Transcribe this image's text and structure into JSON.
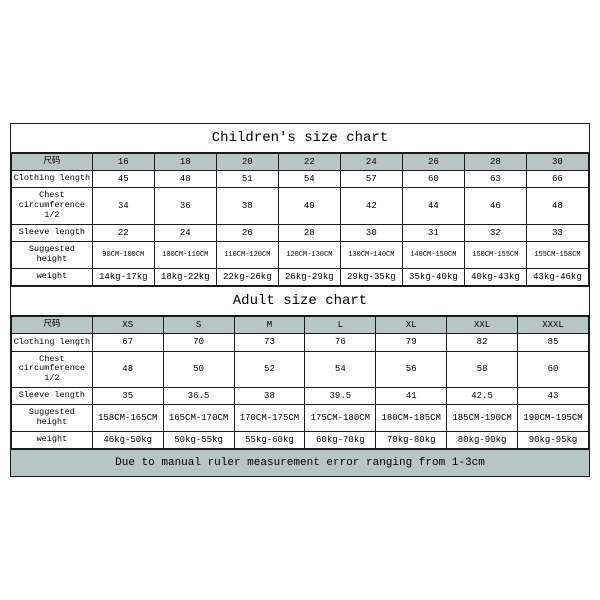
{
  "children": {
    "title": "Children's size chart",
    "header_label": "尺码",
    "sizes": [
      "16",
      "18",
      "20",
      "22",
      "24",
      "26",
      "28",
      "30"
    ],
    "rows": [
      {
        "label": "Clothing length",
        "cells": [
          "45",
          "48",
          "51",
          "54",
          "57",
          "60",
          "63",
          "66"
        ],
        "tiny": false
      },
      {
        "label": "Chest circumference 1/2",
        "cells": [
          "34",
          "36",
          "38",
          "40",
          "42",
          "44",
          "46",
          "48"
        ],
        "tiny": false
      },
      {
        "label": "Sleeve length",
        "cells": [
          "22",
          "24",
          "26",
          "28",
          "30",
          "31",
          "32",
          "33"
        ],
        "tiny": false
      },
      {
        "label": "Suggested height",
        "cells": [
          "90CM-100CM",
          "100CM-110CM",
          "110CM-120CM",
          "120CM-130CM",
          "130CM-140CM",
          "140CM-150CM",
          "150CM-155CM",
          "155CM-158CM"
        ],
        "tiny": true
      },
      {
        "label": "weight",
        "cells": [
          "14kg-17kg",
          "18kg-22kg",
          "22kg-26kg",
          "26kg-29kg",
          "29kg-35kg",
          "35kg-40kg",
          "40kg-43kg",
          "43kg-46kg"
        ],
        "tiny": false
      }
    ]
  },
  "adult": {
    "title": "Adult size chart",
    "header_label": "尺码",
    "sizes": [
      "XS",
      "S",
      "M",
      "L",
      "XL",
      "XXL",
      "XXXL"
    ],
    "rows": [
      {
        "label": "Clothing length",
        "cells": [
          "67",
          "70",
          "73",
          "76",
          "79",
          "82",
          "85"
        ],
        "tiny": false
      },
      {
        "label": "Chest circumference 1/2",
        "cells": [
          "48",
          "50",
          "52",
          "54",
          "56",
          "58",
          "60"
        ],
        "tiny": false
      },
      {
        "label": "Sleeve length",
        "cells": [
          "35",
          "36.5",
          "38",
          "39.5",
          "41",
          "42.5",
          "43"
        ],
        "tiny": false
      },
      {
        "label": "Suggested height",
        "cells": [
          "158CM-165CM",
          "165CM-170CM",
          "170CM-175CM",
          "175CM-180CM",
          "180CM-185CM",
          "185CM-190CM",
          "190CM-195CM"
        ],
        "tiny": false
      },
      {
        "label": "weight",
        "cells": [
          "46kg-50kg",
          "50kg-55kg",
          "55kg-60kg",
          "60kg-70kg",
          "70kg-80kg",
          "80kg-90kg",
          "90kg-95kg"
        ],
        "tiny": false
      }
    ]
  },
  "footer": "Due to manual ruler measurement error ranging from 1-3cm",
  "style": {
    "header_bg": "#b8c5c5",
    "border_color": "#1a1a1a",
    "background": "#ffffff",
    "font_family": "Courier New, monospace",
    "children_col_widths_pct": [
      14,
      10.75,
      10.75,
      10.75,
      10.75,
      10.75,
      10.75,
      10.75,
      10.75
    ],
    "adult_col_widths_pct": [
      14,
      12.285,
      12.285,
      12.285,
      12.285,
      12.285,
      12.285,
      12.285
    ]
  }
}
